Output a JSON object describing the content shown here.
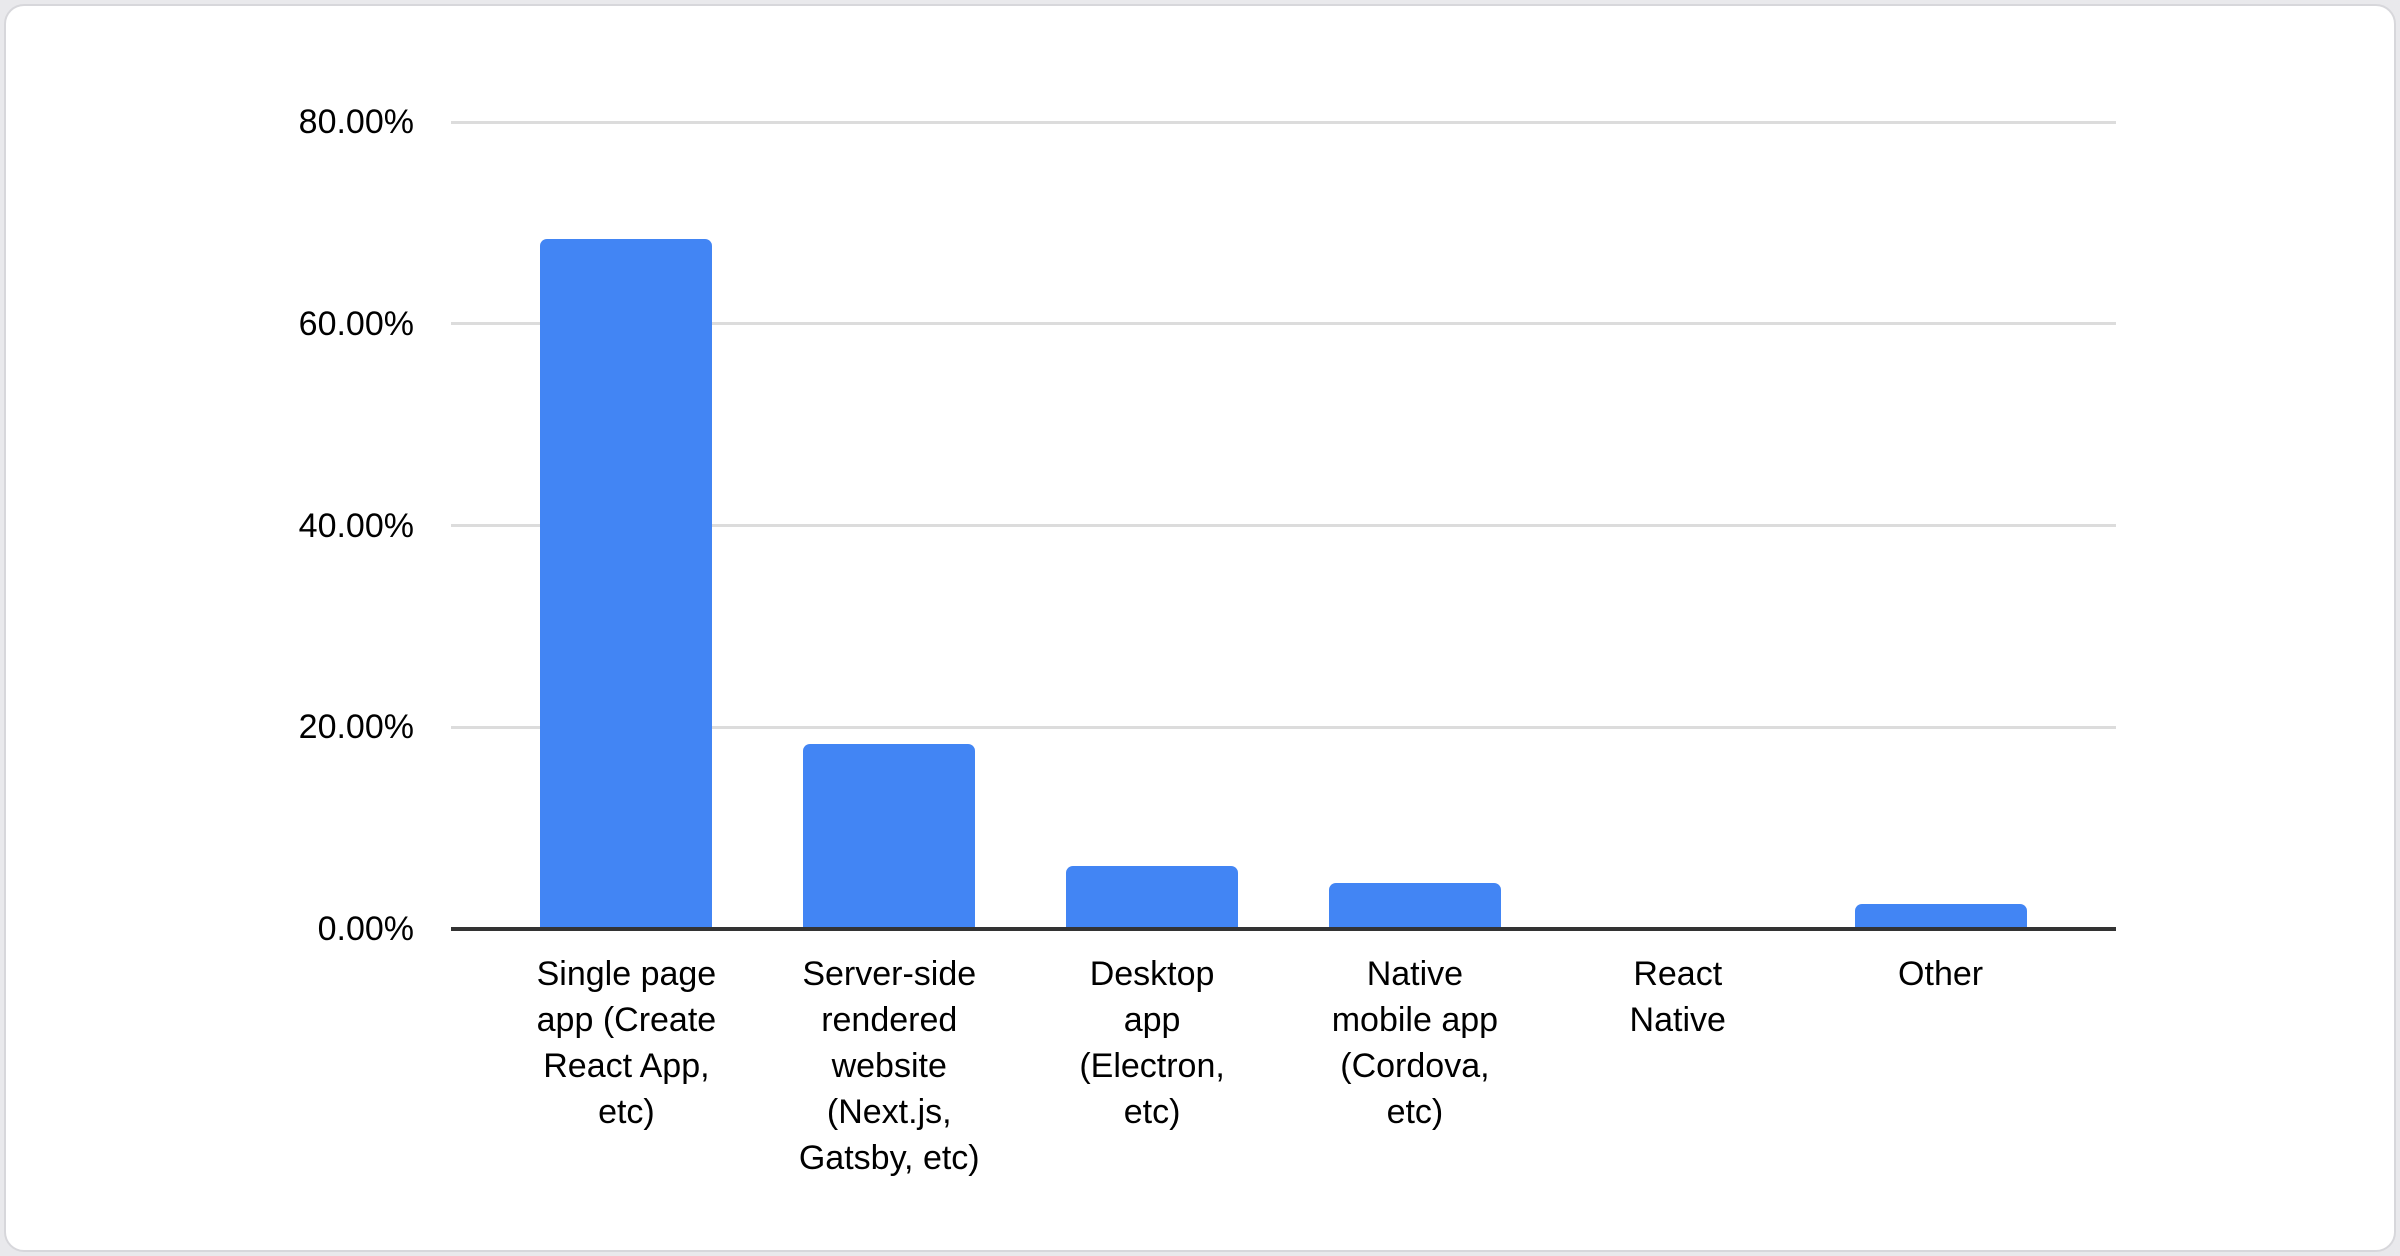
{
  "page": {
    "background_color": "#e9e9ec",
    "card_background": "#ffffff",
    "card_border_color": "#d7d7db"
  },
  "chart_data": {
    "type": "bar",
    "title": "",
    "xlabel": "",
    "ylabel": "",
    "categories": [
      "Single page app (Create React App, etc)",
      "Server-side rendered website (Next.js, Gatsby, etc)",
      "Desktop app (Electron, etc)",
      "Native mobile app (Cordova, etc)",
      "React Native",
      "Other"
    ],
    "category_label_lines": [
      "Single page\napp (Create\nReact App,\netc)",
      "Server-side\nrendered\nwebsite\n(Next.js,\nGatsby, etc)",
      "Desktop\napp\n(Electron,\netc)",
      "Native\nmobile app\n(Cordova,\netc)",
      "React\nNative",
      "Other"
    ],
    "values": [
      68.4,
      18.3,
      6.2,
      4.6,
      0,
      2.5
    ],
    "value_unit": "percent",
    "ylim": [
      0,
      80
    ],
    "y_tick_interval": 20,
    "y_tick_labels": [
      "80.00%",
      "60.00%",
      "40.00%",
      "20.00%",
      "0.00%"
    ],
    "grid": true,
    "legend": "none",
    "bar_color": "#4285f4",
    "gridline_color": "#dcdcdc",
    "axis_line_color": "#333333",
    "label_color": "#000000"
  }
}
